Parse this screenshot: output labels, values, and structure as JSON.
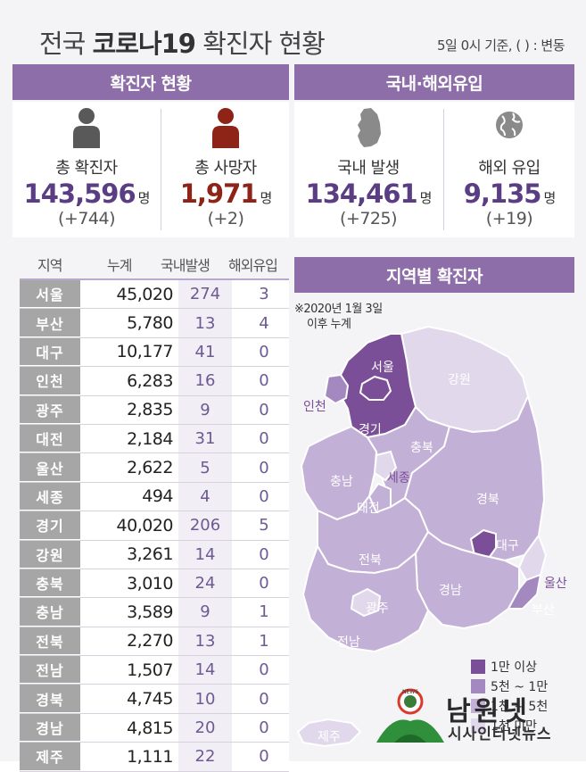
{
  "header": {
    "title_prefix": "전국 ",
    "title_bold": "코로나19",
    "title_suffix": " 확진자 현황",
    "note": "5일 0시 기준, ( ) : 변동"
  },
  "confirmed_section": {
    "title": "확진자 현황",
    "stats": [
      {
        "label": "총 확진자",
        "value": "143,596",
        "unit": "명",
        "delta": "(+744)",
        "icon": "person-icon",
        "color": "#555555"
      },
      {
        "label": "총 사망자",
        "value": "1,971",
        "unit": "명",
        "delta": "(+2)",
        "icon": "person-icon",
        "color": "#8e2318"
      }
    ]
  },
  "origin_section": {
    "title": "국내·해외유입",
    "stats": [
      {
        "label": "국내 발생",
        "value": "134,461",
        "unit": "명",
        "delta": "(+725)",
        "icon": "korea-map-icon",
        "color": "#888888"
      },
      {
        "label": "해외 유입",
        "value": "9,135",
        "unit": "명",
        "delta": "(+19)",
        "icon": "globe-icon",
        "color": "#888888"
      }
    ]
  },
  "table": {
    "headers": {
      "region": "지역",
      "total": "누계",
      "domestic": "국내발생",
      "overseas": "해외유입"
    },
    "rows": [
      {
        "region": "서울",
        "total": "45,020",
        "domestic": "274",
        "overseas": "3"
      },
      {
        "region": "부산",
        "total": "5,780",
        "domestic": "13",
        "overseas": "4"
      },
      {
        "region": "대구",
        "total": "10,177",
        "domestic": "41",
        "overseas": "0"
      },
      {
        "region": "인천",
        "total": "6,283",
        "domestic": "16",
        "overseas": "0"
      },
      {
        "region": "광주",
        "total": "2,835",
        "domestic": "9",
        "overseas": "0"
      },
      {
        "region": "대전",
        "total": "2,184",
        "domestic": "31",
        "overseas": "0"
      },
      {
        "region": "울산",
        "total": "2,622",
        "domestic": "5",
        "overseas": "0"
      },
      {
        "region": "세종",
        "total": "494",
        "domestic": "4",
        "overseas": "0"
      },
      {
        "region": "경기",
        "total": "40,020",
        "domestic": "206",
        "overseas": "5"
      },
      {
        "region": "강원",
        "total": "3,261",
        "domestic": "14",
        "overseas": "0"
      },
      {
        "region": "충북",
        "total": "3,010",
        "domestic": "24",
        "overseas": "0"
      },
      {
        "region": "충남",
        "total": "3,589",
        "domestic": "9",
        "overseas": "1"
      },
      {
        "region": "전북",
        "total": "2,270",
        "domestic": "13",
        "overseas": "1"
      },
      {
        "region": "전남",
        "total": "1,507",
        "domestic": "14",
        "overseas": "0"
      },
      {
        "region": "경북",
        "total": "4,745",
        "domestic": "10",
        "overseas": "0"
      },
      {
        "region": "경남",
        "total": "4,815",
        "domestic": "20",
        "overseas": "0"
      },
      {
        "region": "제주",
        "total": "1,111",
        "domestic": "22",
        "overseas": "0"
      }
    ]
  },
  "map_section": {
    "title": "지역별 확진자",
    "note_line1": "※2020년 1월 3일",
    "note_line2": "이후 누계",
    "labels": {
      "seoul": "서울",
      "incheon": "인천",
      "gyeonggi": "경기",
      "gangwon": "강원",
      "chungbuk": "충북",
      "chungnam": "충남",
      "sejong": "세종",
      "daejeon": "대전",
      "gyeongbuk": "경북",
      "daegu": "대구",
      "jeonbuk": "전북",
      "gwangju": "광주",
      "jeonnam": "전남",
      "gyeongnam": "경남",
      "ulsan": "울산",
      "busan": "부산",
      "jeju": "제주"
    },
    "legend": [
      {
        "label": "1만 이상",
        "color": "#7b4f98"
      },
      {
        "label": "5천 ~ 1만",
        "color": "#a488c0"
      },
      {
        "label": "1천 ~ 5천",
        "color": "#c3b0d6"
      },
      {
        "label": "1천 미만",
        "color": "#e2d8ec"
      }
    ],
    "colors": {
      "tier1": "#7b4f98",
      "tier2": "#a488c0",
      "tier3": "#c3b0d6",
      "tier4": "#e2d8ec"
    }
  },
  "logo": {
    "main": "남원넷",
    "sub": "시사인터넷뉴스",
    "emblem_text": "NEWS"
  },
  "colors": {
    "banner": "#8d6ea8",
    "value_purple": "#5a3d83",
    "value_red": "#8e2318",
    "region_cell": "#a6a6a6"
  }
}
